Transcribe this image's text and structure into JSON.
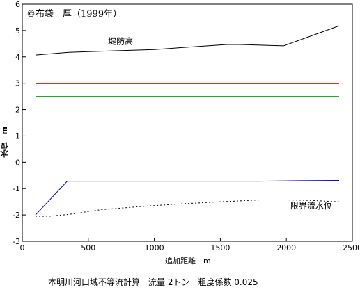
{
  "chart_data": {
    "type": "line",
    "title": "本明川河口域不等流計算　流量 2トン　粗度係数 0.025",
    "copyright": "©布袋　厚（1999年）",
    "xlabel": "追加距離　m",
    "ylabel": "水位　m",
    "xlim": [
      0,
      2500
    ],
    "ylim": [
      -3,
      6
    ],
    "x_ticks": [
      "0",
      "500",
      "1000",
      "1500",
      "2000",
      "2500"
    ],
    "y_ticks": [
      "6",
      "5",
      "4",
      "3",
      "2",
      "1",
      "0",
      "-1",
      "-2",
      "-3"
    ],
    "grid": false,
    "series": [
      {
        "name": "堤防高",
        "color": "#000000",
        "style": "solid",
        "x": [
          100,
          350,
          500,
          1000,
          1200,
          1550,
          1650,
          1980,
          2400
        ],
        "y": [
          4.07,
          4.17,
          4.2,
          4.28,
          4.35,
          4.47,
          4.47,
          4.42,
          5.18
        ]
      },
      {
        "color": "#ff0000",
        "style": "solid",
        "x": [
          100,
          2400
        ],
        "y": [
          2.98,
          2.98
        ]
      },
      {
        "color": "#00a000",
        "style": "solid",
        "x": [
          100,
          2400
        ],
        "y": [
          2.5,
          2.5
        ]
      },
      {
        "color": "#0000cc",
        "style": "solid",
        "x": [
          100,
          340,
          1000,
          1500,
          1800,
          2100,
          2400
        ],
        "y": [
          -2.0,
          -0.72,
          -0.72,
          -0.72,
          -0.72,
          -0.7,
          -0.69
        ]
      },
      {
        "name": "限界流水位",
        "color": "#000000",
        "style": "dotted",
        "x": [
          100,
          200,
          350,
          600,
          900,
          1200,
          1500,
          1800,
          2000,
          2200,
          2400
        ],
        "y": [
          -2.05,
          -2.05,
          -1.98,
          -1.8,
          -1.68,
          -1.58,
          -1.5,
          -1.43,
          -1.43,
          -1.45,
          -1.5
        ]
      }
    ]
  }
}
